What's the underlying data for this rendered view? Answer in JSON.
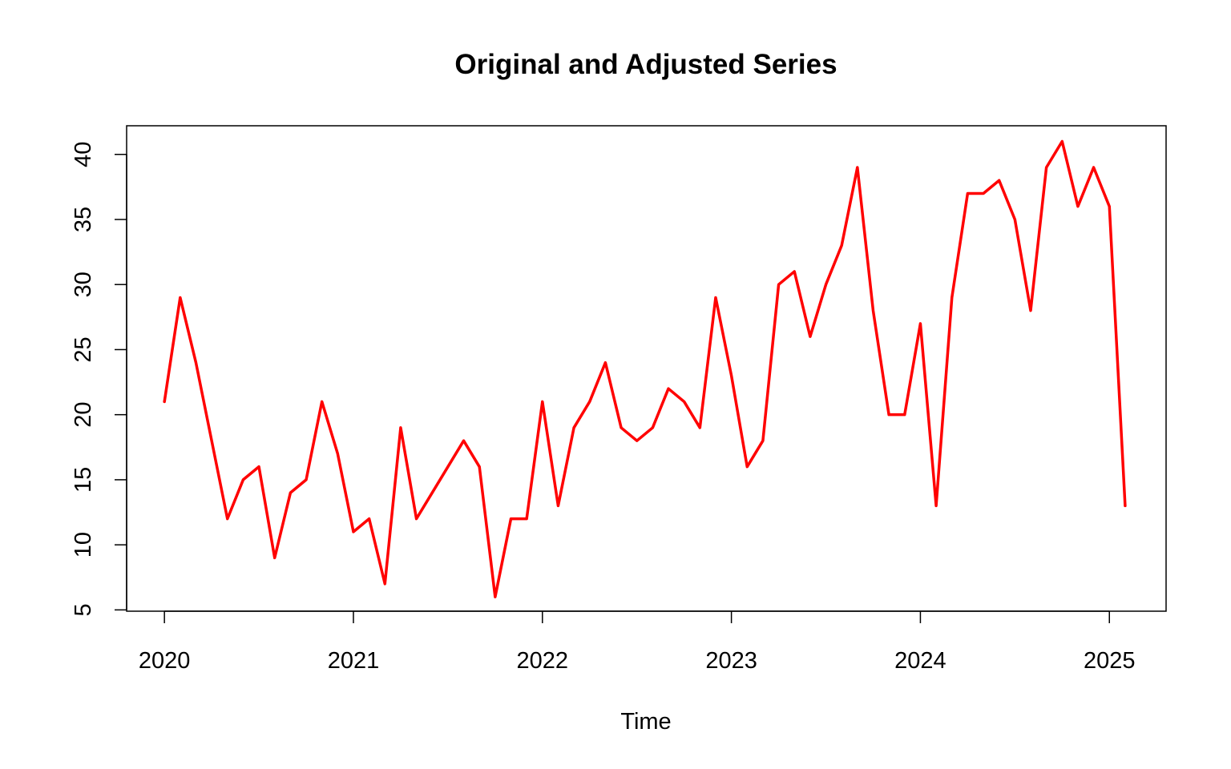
{
  "chart_data": {
    "type": "line",
    "title": "Original and Adjusted Series",
    "xlabel": "Time",
    "ylabel": "",
    "xlim": [
      2019.8,
      2025.3
    ],
    "ylim": [
      4.9,
      42.2
    ],
    "x_ticks": [
      2020,
      2021,
      2022,
      2023,
      2024,
      2025
    ],
    "y_ticks": [
      5,
      10,
      15,
      20,
      25,
      30,
      35,
      40
    ],
    "grid": false,
    "legend": "none",
    "x_start": 2020,
    "x_frequency": 12,
    "series": [
      {
        "color": "#ff0000",
        "values": [
          21,
          29,
          24,
          18,
          12,
          15,
          16,
          9,
          14,
          15,
          21,
          17,
          11,
          12,
          7,
          19,
          12,
          14,
          16,
          18,
          16,
          6,
          12,
          12,
          21,
          13,
          19,
          21,
          24,
          19,
          18,
          19,
          22,
          21,
          19,
          29,
          23,
          16,
          18,
          30,
          31,
          26,
          30,
          33,
          39,
          28,
          20,
          20,
          27,
          13,
          29,
          37,
          37,
          38,
          35,
          28,
          39,
          41,
          36,
          39,
          36,
          13
        ]
      }
    ]
  }
}
